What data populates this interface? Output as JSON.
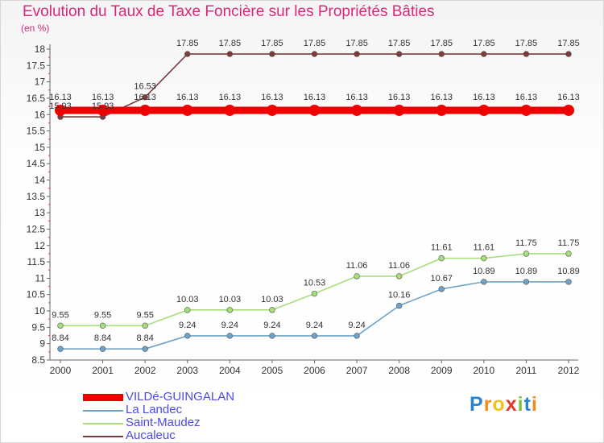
{
  "title": "Evolution du Taux de Taxe Foncière sur les Propriétés Bâties",
  "unit": "(en %)",
  "brand": {
    "letters": [
      "P",
      "r",
      "o",
      "x",
      "i",
      "t",
      "i"
    ],
    "colors": [
      "#2a84d4",
      "#f28c1c",
      "#f2c21c",
      "#e23b2a",
      "#7cc243",
      "#2a84d4",
      "#f28c1c"
    ]
  },
  "chart_data": {
    "type": "line",
    "title": "Evolution du Taux de Taxe Foncière sur les Propriétés Bâties",
    "ylabel": "(en %)",
    "xlabel": "",
    "x": [
      "2000",
      "2001",
      "2002",
      "2003",
      "2004",
      "2005",
      "2006",
      "2007",
      "2008",
      "2009",
      "2010",
      "2011",
      "2012"
    ],
    "ylim": [
      8.5,
      18
    ],
    "ytick_labels": [
      "8.5",
      "9",
      "9.5",
      "10",
      "10.5",
      "11",
      "11.5",
      "12",
      "12.5",
      "13",
      "13.5",
      "14",
      "14.5",
      "15",
      "15.5",
      "16",
      "16.5",
      "17",
      "17.5",
      "18"
    ],
    "grid": false,
    "legend": "bottom-left",
    "series": [
      {
        "name": "VILDé-GUINGALAN",
        "color": "#ee0000",
        "highlight": true,
        "values": [
          16.13,
          16.13,
          16.13,
          16.13,
          16.13,
          16.13,
          16.13,
          16.13,
          16.13,
          16.13,
          16.13,
          16.13,
          16.13
        ],
        "labels": [
          "16.13",
          "16.13",
          "16.13",
          "16.13",
          "16.13",
          "16.13",
          "16.13",
          "16.13",
          "16.13",
          "16.13",
          "16.13",
          "16.13",
          "16.13"
        ]
      },
      {
        "name": "La Landec",
        "color": "#6ea2c9",
        "highlight": false,
        "values": [
          8.84,
          8.84,
          8.84,
          9.24,
          9.24,
          9.24,
          9.24,
          9.24,
          10.16,
          10.67,
          10.89,
          10.89,
          10.89
        ],
        "labels": [
          "8.84",
          "8.84",
          "8.84",
          "9.24",
          "9.24",
          "9.24",
          "9.24",
          "9.24",
          "10.16",
          "10.67",
          "10.89",
          "10.89",
          "10.89"
        ]
      },
      {
        "name": "Saint-Maudez",
        "color": "#a6de7a",
        "highlight": false,
        "values": [
          9.55,
          9.55,
          9.55,
          10.03,
          10.03,
          10.03,
          10.53,
          11.06,
          11.06,
          11.61,
          11.61,
          11.75,
          11.75
        ],
        "labels": [
          "9.55",
          "9.55",
          "9.55",
          "10.03",
          "10.03",
          "10.03",
          "10.53",
          "11.06",
          "11.06",
          "11.61",
          "11.61",
          "11.75",
          "11.75"
        ]
      },
      {
        "name": "Aucaleuc",
        "color": "#7d3b3b",
        "highlight": false,
        "values": [
          15.93,
          15.93,
          16.53,
          17.85,
          17.85,
          17.85,
          17.85,
          17.85,
          17.85,
          17.85,
          17.85,
          17.85,
          17.85
        ],
        "labels": [
          "15.93",
          "15.93",
          "16.53",
          "17.85",
          "17.85",
          "17.85",
          "17.85",
          "17.85",
          "17.85",
          "17.85",
          "17.85",
          "17.85",
          "17.85"
        ]
      }
    ]
  }
}
